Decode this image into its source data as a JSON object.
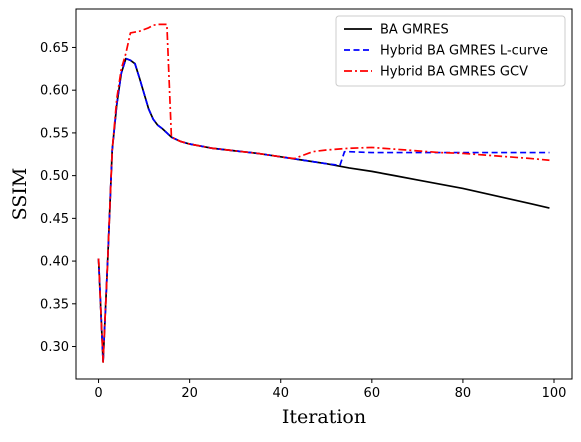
{
  "chart_data": {
    "type": "line",
    "title": "",
    "xlabel": "Iteration",
    "ylabel": "SSIM",
    "xlim": [
      -4.95,
      103.95
    ],
    "ylim": [
      0.262,
      0.695
    ],
    "x_ticks": [
      0,
      20,
      40,
      60,
      80,
      100
    ],
    "x_tick_labels": [
      "0",
      "20",
      "40",
      "60",
      "80",
      "100"
    ],
    "y_ticks": [
      0.3,
      0.35,
      0.4,
      0.45,
      0.5,
      0.55,
      0.6,
      0.65
    ],
    "y_tick_labels": [
      "0.30",
      "0.35",
      "0.40",
      "0.45",
      "0.50",
      "0.55",
      "0.60",
      "0.65"
    ],
    "grid": false,
    "legend_position": "upper right",
    "series": [
      {
        "name": "BA GMRES",
        "color": "#000000",
        "dash": "solid",
        "points": [
          [
            0,
            0.403
          ],
          [
            1,
            0.282
          ],
          [
            2,
            0.4
          ],
          [
            3,
            0.53
          ],
          [
            4,
            0.583
          ],
          [
            5,
            0.62
          ],
          [
            6,
            0.637
          ],
          [
            7,
            0.635
          ],
          [
            8,
            0.631
          ],
          [
            9,
            0.614
          ],
          [
            10,
            0.596
          ],
          [
            11,
            0.578
          ],
          [
            12,
            0.566
          ],
          [
            13,
            0.559
          ],
          [
            14,
            0.555
          ],
          [
            15,
            0.55
          ],
          [
            16,
            0.545
          ],
          [
            18,
            0.54
          ],
          [
            20,
            0.537
          ],
          [
            25,
            0.532
          ],
          [
            30,
            0.529
          ],
          [
            35,
            0.526
          ],
          [
            40,
            0.522
          ],
          [
            45,
            0.518
          ],
          [
            50,
            0.514
          ],
          [
            55,
            0.509
          ],
          [
            60,
            0.505
          ],
          [
            65,
            0.5
          ],
          [
            70,
            0.495
          ],
          [
            75,
            0.49
          ],
          [
            80,
            0.485
          ],
          [
            85,
            0.479
          ],
          [
            90,
            0.473
          ],
          [
            95,
            0.467
          ],
          [
            99,
            0.462
          ]
        ]
      },
      {
        "name": "Hybrid BA GMRES L-curve",
        "color": "#0000ff",
        "dash": "dashed",
        "points": [
          [
            0,
            0.403
          ],
          [
            1,
            0.282
          ],
          [
            2,
            0.4
          ],
          [
            3,
            0.53
          ],
          [
            4,
            0.583
          ],
          [
            5,
            0.62
          ],
          [
            6,
            0.637
          ],
          [
            7,
            0.635
          ],
          [
            8,
            0.631
          ],
          [
            9,
            0.614
          ],
          [
            10,
            0.596
          ],
          [
            11,
            0.578
          ],
          [
            12,
            0.566
          ],
          [
            13,
            0.559
          ],
          [
            14,
            0.555
          ],
          [
            15,
            0.55
          ],
          [
            16,
            0.545
          ],
          [
            18,
            0.54
          ],
          [
            20,
            0.537
          ],
          [
            25,
            0.532
          ],
          [
            30,
            0.529
          ],
          [
            35,
            0.526
          ],
          [
            40,
            0.522
          ],
          [
            45,
            0.518
          ],
          [
            50,
            0.514
          ],
          [
            53,
            0.512
          ],
          [
            54,
            0.528
          ],
          [
            55,
            0.528
          ],
          [
            60,
            0.527
          ],
          [
            70,
            0.527
          ],
          [
            80,
            0.527
          ],
          [
            90,
            0.527
          ],
          [
            99,
            0.527
          ]
        ]
      },
      {
        "name": "Hybrid BA GMRES GCV",
        "color": "#ff0000",
        "dash": "dashdot",
        "points": [
          [
            0,
            0.403
          ],
          [
            1,
            0.282
          ],
          [
            2,
            0.4
          ],
          [
            3,
            0.53
          ],
          [
            4,
            0.59
          ],
          [
            5,
            0.625
          ],
          [
            6,
            0.643
          ],
          [
            7,
            0.667
          ],
          [
            8,
            0.668
          ],
          [
            9,
            0.669
          ],
          [
            10,
            0.671
          ],
          [
            11,
            0.673
          ],
          [
            12,
            0.676
          ],
          [
            13,
            0.677
          ],
          [
            14,
            0.677
          ],
          [
            15,
            0.677
          ],
          [
            16,
            0.545
          ],
          [
            18,
            0.54
          ],
          [
            20,
            0.537
          ],
          [
            25,
            0.532
          ],
          [
            30,
            0.529
          ],
          [
            35,
            0.526
          ],
          [
            40,
            0.522
          ],
          [
            43,
            0.52
          ],
          [
            45,
            0.524
          ],
          [
            47,
            0.528
          ],
          [
            50,
            0.53
          ],
          [
            55,
            0.532
          ],
          [
            60,
            0.533
          ],
          [
            65,
            0.531
          ],
          [
            70,
            0.529
          ],
          [
            75,
            0.527
          ],
          [
            80,
            0.526
          ],
          [
            85,
            0.524
          ],
          [
            90,
            0.522
          ],
          [
            95,
            0.52
          ],
          [
            99,
            0.518
          ]
        ]
      }
    ]
  }
}
